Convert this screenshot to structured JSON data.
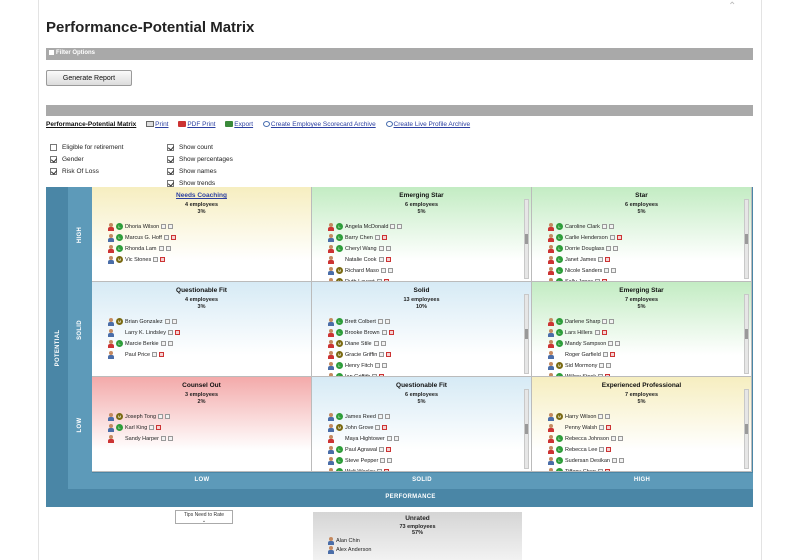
{
  "page": {
    "title": "Performance-Potential Matrix"
  },
  "filter": {
    "label": "Filter Options"
  },
  "actions": {
    "generate_report": "Generate Report"
  },
  "toolbar": {
    "title": "Performance-Potential Matrix",
    "links": [
      "Print",
      "PDF Print",
      "Export",
      "Create Employee Scorecard Archive",
      "Create Live Profile Archive"
    ]
  },
  "options": {
    "left": [
      {
        "label": "Eligible for retirement",
        "checked": false
      },
      {
        "label": "Gender",
        "checked": true
      },
      {
        "label": "Risk Of Loss",
        "checked": true
      }
    ],
    "right": [
      {
        "label": "Show count",
        "checked": true
      },
      {
        "label": "Show percentages",
        "checked": true
      },
      {
        "label": "Show names",
        "checked": true
      },
      {
        "label": "Show trends",
        "checked": true
      }
    ]
  },
  "axes": {
    "potential": "POTENTIAL",
    "performance": "PERFORMANCE",
    "rows": [
      "HIGH",
      "SOLID",
      "LOW"
    ],
    "cols": [
      "LOW",
      "SOLID",
      "HIGH"
    ]
  },
  "colors": {
    "yellow": "#f6eec0",
    "green": "#c3ecc3",
    "blue": "#d6eaf5",
    "red": "#f3aaaa",
    "axis": "#4a86a6"
  },
  "cells": [
    {
      "id": "needs-coaching",
      "title": "Needs Coaching",
      "link": true,
      "count": "4 employees",
      "pct": "3%",
      "bg": "yellow",
      "scroll": false,
      "people": [
        {
          "name": "Dhoria Wilson",
          "g": "f",
          "s": "l"
        },
        {
          "name": "Marcus G. Hoff",
          "g": "m",
          "s": "l"
        },
        {
          "name": "Rhonda Lam",
          "g": "f",
          "s": "l"
        },
        {
          "name": "Vic Stones",
          "g": "m",
          "s": "m"
        }
      ]
    },
    {
      "id": "emerging-star-1",
      "title": "Emerging Star",
      "link": false,
      "count": "6 employees",
      "pct": "5%",
      "bg": "green",
      "scroll": true,
      "people": [
        {
          "name": "Angela McDonald",
          "g": "f",
          "s": "l"
        },
        {
          "name": "Barry Chen",
          "g": "m",
          "s": "l"
        },
        {
          "name": "Cheryl Wang",
          "g": "f",
          "s": "l"
        },
        {
          "name": "Natalie Cook",
          "g": "f",
          "s": "n"
        },
        {
          "name": "Richard Maso",
          "g": "m",
          "s": "m"
        },
        {
          "name": "Ruth Lavant",
          "g": "f",
          "s": "m"
        }
      ]
    },
    {
      "id": "star",
      "title": "Star",
      "link": false,
      "count": "6 employees",
      "pct": "5%",
      "bg": "green",
      "scroll": true,
      "people": [
        {
          "name": "Caroline Clark",
          "g": "f",
          "s": "l"
        },
        {
          "name": "Carlie Henderson",
          "g": "f",
          "s": "l"
        },
        {
          "name": "Dorrie Douglass",
          "g": "f",
          "s": "l"
        },
        {
          "name": "Janet James",
          "g": "f",
          "s": "l"
        },
        {
          "name": "Nicole Sanders",
          "g": "f",
          "s": "l"
        },
        {
          "name": "Sally Jones",
          "g": "f",
          "s": "l"
        }
      ]
    },
    {
      "id": "questionable-fit-1",
      "title": "Questionable Fit",
      "link": false,
      "count": "4 employees",
      "pct": "3%",
      "bg": "blue",
      "scroll": false,
      "people": [
        {
          "name": "Brian Gonzalez",
          "g": "m",
          "s": "m"
        },
        {
          "name": "Larry K. Lindsley",
          "g": "m",
          "s": "n"
        },
        {
          "name": "Marcie Berkie",
          "g": "f",
          "s": "l"
        },
        {
          "name": "Paul Price",
          "g": "m",
          "s": "n"
        }
      ]
    },
    {
      "id": "solid",
      "title": "Solid",
      "link": false,
      "count": "13 employees",
      "pct": "10%",
      "bg": "blue",
      "scroll": true,
      "people": [
        {
          "name": "Brett Colbert",
          "g": "m",
          "s": "l"
        },
        {
          "name": "Brooke Brown",
          "g": "f",
          "s": "l"
        },
        {
          "name": "Diane Stile",
          "g": "f",
          "s": "m"
        },
        {
          "name": "Gracie Griffin",
          "g": "f",
          "s": "m"
        },
        {
          "name": "Henry Fitch",
          "g": "m",
          "s": "l"
        },
        {
          "name": "Ian Griffith",
          "g": "m",
          "s": "l"
        }
      ]
    },
    {
      "id": "emerging-star-2",
      "title": "Emerging Star",
      "link": false,
      "count": "7 employees",
      "pct": "5%",
      "bg": "green",
      "scroll": true,
      "people": [
        {
          "name": "Darlene Sharp",
          "g": "f",
          "s": "l"
        },
        {
          "name": "Lars Hillers",
          "g": "m",
          "s": "l"
        },
        {
          "name": "Mandy Sampson",
          "g": "f",
          "s": "l"
        },
        {
          "name": "Roger Garfield",
          "g": "m",
          "s": "n"
        },
        {
          "name": "Sid Mormony",
          "g": "m",
          "s": "m"
        },
        {
          "name": "Willow Stock",
          "g": "f",
          "s": "l"
        }
      ]
    },
    {
      "id": "counsel-out",
      "title": "Counsel Out",
      "link": false,
      "count": "3 employees",
      "pct": "2%",
      "bg": "red",
      "scroll": false,
      "people": [
        {
          "name": "Joseph Tong",
          "g": "m",
          "s": "m"
        },
        {
          "name": "Karl King",
          "g": "m",
          "s": "l"
        },
        {
          "name": "Sandy Harper",
          "g": "f",
          "s": "n"
        }
      ]
    },
    {
      "id": "questionable-fit-2",
      "title": "Questionable Fit",
      "link": false,
      "count": "6 employees",
      "pct": "5%",
      "bg": "blue",
      "scroll": true,
      "people": [
        {
          "name": "James Reed",
          "g": "m",
          "s": "l"
        },
        {
          "name": "John Grove",
          "g": "m",
          "s": "m"
        },
        {
          "name": "Maya Hightower",
          "g": "f",
          "s": "n"
        },
        {
          "name": "Paul Agrawal",
          "g": "m",
          "s": "l"
        },
        {
          "name": "Steve Pepper",
          "g": "m",
          "s": "l"
        },
        {
          "name": "Walt Wesley",
          "g": "m",
          "s": "l"
        }
      ]
    },
    {
      "id": "experienced-professional",
      "title": "Experienced Professional",
      "link": false,
      "count": "7 employees",
      "pct": "5%",
      "bg": "yellow",
      "scroll": true,
      "people": [
        {
          "name": "Harry Wilson",
          "g": "m",
          "s": "m"
        },
        {
          "name": "Penny Walsh",
          "g": "f",
          "s": "n"
        },
        {
          "name": "Rebecca Johnson",
          "g": "f",
          "s": "l"
        },
        {
          "name": "Rebecca Lee",
          "g": "f",
          "s": "l"
        },
        {
          "name": "Sudersan Desikan",
          "g": "m",
          "s": "l"
        },
        {
          "name": "Tiffany Chen",
          "g": "f",
          "s": "l"
        }
      ]
    }
  ],
  "unrated": {
    "title": "Unrated",
    "count": "73 employees",
    "pct": "57%",
    "people": [
      "Alan Chin",
      "Alex Anderson"
    ]
  },
  "tooltip": "Tips Need to Rate"
}
